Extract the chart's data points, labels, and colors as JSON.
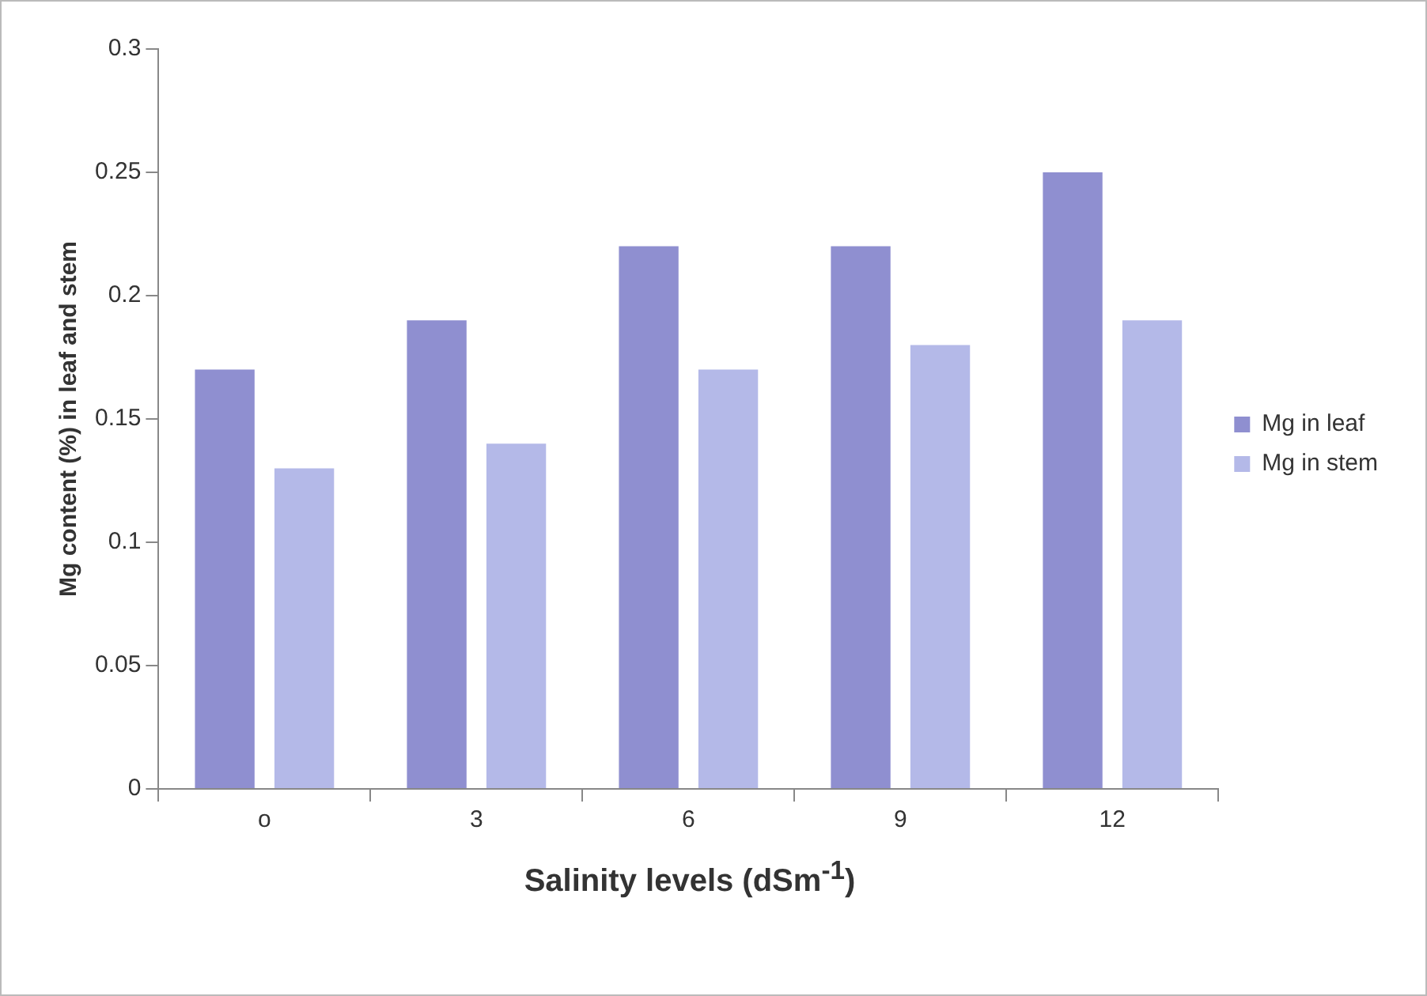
{
  "chart_data": {
    "type": "bar",
    "xlabel": "Salinity levels (dSm$^{-1}$)",
    "ylabel": "Mg content (%) in leaf and stem",
    "categories": [
      "o",
      "3",
      "6",
      "9",
      "12"
    ],
    "series": [
      {
        "name": "Mg in leaf",
        "color": "#8f8fd0",
        "values": [
          0.17,
          0.19,
          0.22,
          0.22,
          0.25
        ]
      },
      {
        "name": "Mg in stem",
        "color": "#b4b9e8",
        "values": [
          0.13,
          0.14,
          0.17,
          0.18,
          0.19
        ]
      }
    ],
    "ylim": [
      0,
      0.3
    ],
    "yticks": [
      0,
      0.05,
      0.1,
      0.15,
      0.2,
      0.25,
      0.3
    ],
    "grid": false,
    "legend": "right"
  }
}
